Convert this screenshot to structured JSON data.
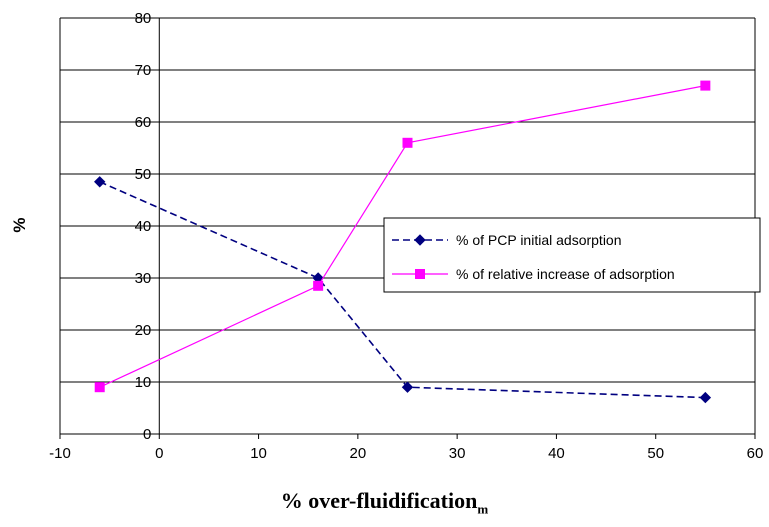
{
  "chart_data": {
    "type": "line",
    "title": "",
    "xlabel": "% over-fluidification",
    "xlabel_subscript": "m",
    "ylabel": "%",
    "xlim": [
      -10,
      60
    ],
    "ylim": [
      0,
      80
    ],
    "xticks": [
      "-10",
      "0",
      "10",
      "20",
      "30",
      "40",
      "50",
      "60"
    ],
    "yticks": [
      "0",
      "10",
      "20",
      "30",
      "40",
      "50",
      "60",
      "70",
      "80"
    ],
    "grid": "horizontal",
    "legend_position": "right",
    "series": [
      {
        "name": "% of PCP initial adsorption",
        "color": "#000080",
        "line_style": "dashed",
        "marker": "diamond",
        "x": [
          -6,
          16,
          25,
          55
        ],
        "y": [
          48.5,
          30,
          9,
          7
        ]
      },
      {
        "name": "% of relative increase of adsorption",
        "color": "#ff00ff",
        "line_style": "solid",
        "marker": "square",
        "x": [
          -6,
          16,
          25,
          55
        ],
        "y": [
          9,
          28.5,
          56,
          67
        ]
      }
    ]
  }
}
